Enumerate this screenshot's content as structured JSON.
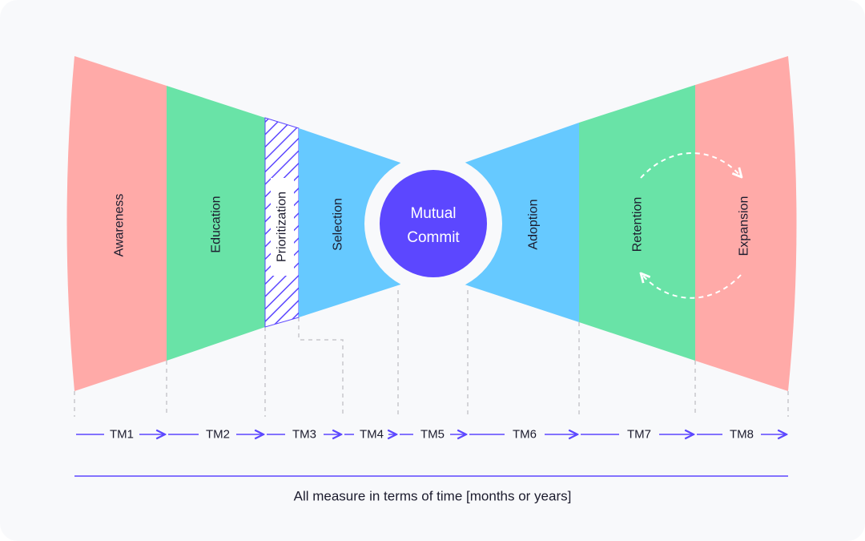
{
  "colors": {
    "red": "#ffaaa8",
    "green": "#69e3a7",
    "blue": "#66c9ff",
    "purple": "#5c47ff",
    "guide": "#c8c8cc",
    "background": "#f8f9fb"
  },
  "stages": {
    "awareness": "Awareness",
    "education": "Education",
    "prioritization": "Prioritization",
    "selection": "Selection",
    "adoption": "Adoption",
    "retention": "Retention",
    "expansion": "Expansion"
  },
  "center": {
    "line1": "Mutual",
    "line2": "Commit"
  },
  "timeline": {
    "labels": [
      "TM1",
      "TM2",
      "TM3",
      "TM4",
      "TM5",
      "TM6",
      "TM7",
      "TM8"
    ]
  },
  "footer": {
    "caption": "All measure in terms of time [months or years]"
  }
}
